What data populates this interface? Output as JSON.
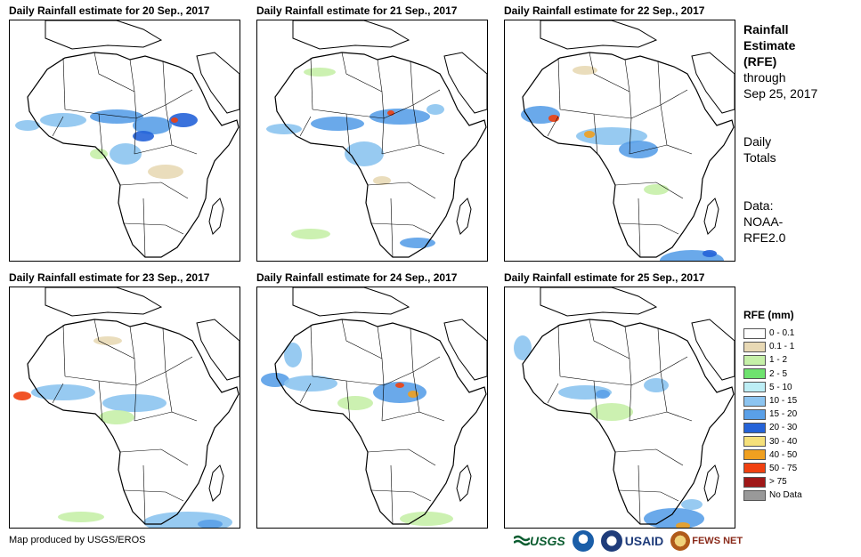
{
  "panels": [
    {
      "title": "Daily Rainfall estimate for 20 Sep., 2017"
    },
    {
      "title": "Daily Rainfall estimate for 21 Sep., 2017"
    },
    {
      "title": "Daily Rainfall estimate for 22 Sep., 2017"
    },
    {
      "title": "Daily Rainfall estimate for 23 Sep., 2017"
    },
    {
      "title": "Daily Rainfall estimate for 24 Sep., 2017"
    },
    {
      "title": "Daily Rainfall estimate for 25 Sep., 2017"
    }
  ],
  "side_info": {
    "title_line1": "Rainfall",
    "title_line2": "Estimate",
    "title_line3": "(RFE)",
    "through_label": "through",
    "through_date": "Sep 25, 2017",
    "totals_line1": "Daily",
    "totals_line2": "Totals",
    "data_label": "Data:",
    "data_source1": "NOAA-",
    "data_source2": "RFE2.0"
  },
  "legend": {
    "title": "RFE (mm)",
    "items": [
      {
        "label": "0 - 0.1",
        "color": "#ffffff"
      },
      {
        "label": "0.1 - 1",
        "color": "#e8d9b5"
      },
      {
        "label": "1 - 2",
        "color": "#c6f0a8"
      },
      {
        "label": "2 - 5",
        "color": "#6ee26e"
      },
      {
        "label": "5 - 10",
        "color": "#bdeef5"
      },
      {
        "label": "10 - 15",
        "color": "#8cc4f0"
      },
      {
        "label": "15 - 20",
        "color": "#5aa0e8"
      },
      {
        "label": "20 - 30",
        "color": "#2563d8"
      },
      {
        "label": "30 - 40",
        "color": "#f5e07a"
      },
      {
        "label": "40 - 50",
        "color": "#f0a020"
      },
      {
        "label": "50 - 75",
        "color": "#f04010"
      },
      {
        "label": "> 75",
        "color": "#a01818"
      },
      {
        "label": "No Data",
        "color": "#999999"
      }
    ]
  },
  "credit": "Map produced by USGS/EROS",
  "logos": {
    "usgs": "USGS",
    "usaid": "USAID",
    "fews": "FEWS NET"
  }
}
